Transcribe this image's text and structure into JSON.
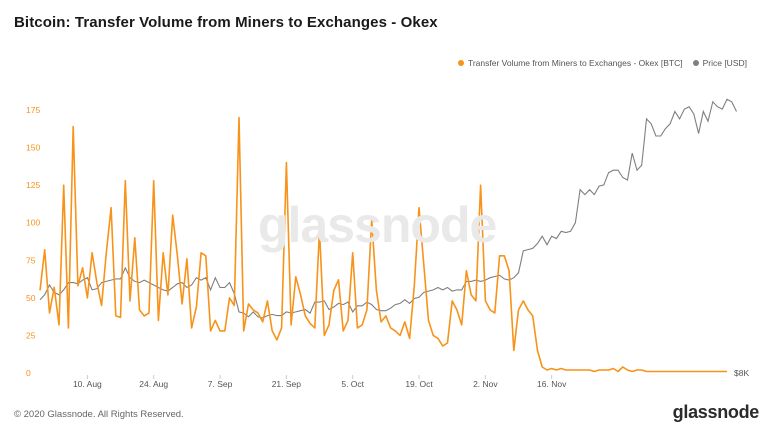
{
  "title": "Bitcoin: Transfer Volume from Miners to Exchanges - Okex",
  "watermark": "glassnode",
  "footer": {
    "copyright": "© 2020 Glassnode. All Rights Reserved.",
    "logo": "glassnode"
  },
  "colors": {
    "volume": "#f7931a",
    "price": "#7f7f7f",
    "axis_left": "#f7931a",
    "axis_text": "#555555"
  },
  "chart_data": {
    "type": "line",
    "title": "Bitcoin: Transfer Volume from Miners to Exchanges - Okex",
    "legend_position": "top-right",
    "grid": false,
    "x_ticks": [
      "10. Aug",
      "24. Aug",
      "7. Sep",
      "21. Sep",
      "5. Oct",
      "19. Oct",
      "2. Nov",
      "16. Nov"
    ],
    "y_left": {
      "ticks": [
        0,
        25,
        50,
        75,
        100,
        125,
        150,
        175
      ],
      "ylim": [
        0,
        187
      ]
    },
    "y_right": {
      "ticks": [
        "$8K"
      ]
    },
    "series": [
      {
        "name": "Transfer Volume from Miners to Exchanges - Okex [BTC]",
        "axis": "left",
        "x_start": "2020-07-31",
        "step_days": 1,
        "values": [
          55,
          82,
          40,
          57,
          32,
          125,
          30,
          164,
          58,
          70,
          50,
          80,
          60,
          45,
          80,
          110,
          38,
          37,
          128,
          48,
          90,
          42,
          38,
          40,
          128,
          35,
          80,
          52,
          105,
          78,
          46,
          76,
          30,
          44,
          80,
          78,
          28,
          35,
          28,
          28,
          50,
          45,
          170,
          28,
          46,
          42,
          40,
          34,
          48,
          28,
          22,
          30,
          140,
          32,
          64,
          52,
          38,
          33,
          30,
          95,
          25,
          32,
          55,
          62,
          28,
          35,
          80,
          30,
          32,
          42,
          102,
          55,
          34,
          38,
          30,
          28,
          25,
          34,
          23,
          58,
          110,
          72,
          35,
          25,
          23,
          18,
          20,
          48,
          42,
          32,
          68,
          52,
          48,
          125,
          48,
          42,
          40,
          78,
          78,
          68,
          15,
          42,
          48,
          42,
          38,
          15,
          4,
          2,
          3,
          2,
          3,
          2,
          2,
          2,
          2,
          2,
          2,
          1,
          2,
          2,
          2,
          3,
          1,
          4,
          2,
          1,
          2,
          2,
          1,
          1,
          1,
          1,
          1,
          1,
          1,
          1,
          1,
          1,
          1,
          1,
          1,
          1,
          1,
          1,
          1,
          1
        ]
      },
      {
        "name": "Price [USD]",
        "axis": "right",
        "x_start": "2020-07-31",
        "step_days": 1,
        "values": [
          11000,
          11200,
          11600,
          11300,
          11200,
          11400,
          11700,
          11700,
          11650,
          11800,
          11900,
          11400,
          11450,
          11700,
          11750,
          11800,
          11850,
          11850,
          12300,
          11900,
          11750,
          11700,
          11800,
          11700,
          11600,
          11500,
          11400,
          11350,
          11500,
          11650,
          11700,
          11500,
          11600,
          11900,
          11800,
          11900,
          11400,
          11900,
          11500,
          11500,
          11700,
          11250,
          10500,
          10450,
          10300,
          10500,
          10300,
          10250,
          10350,
          10400,
          10350,
          10350,
          10500,
          10450,
          10500,
          10550,
          10600,
          10450,
          10900,
          10900,
          10950,
          10600,
          10700,
          10850,
          10800,
          10900,
          10500,
          10750,
          10750,
          10900,
          10800,
          10600,
          10550,
          10550,
          10650,
          10800,
          10850,
          11000,
          10850,
          11050,
          11100,
          11300,
          11350,
          11400,
          11500,
          11400,
          11500,
          11350,
          11400,
          11400,
          11750,
          11750,
          11800,
          11750,
          11800,
          11900,
          11950,
          12000,
          11850,
          11800,
          11900,
          12100,
          13000,
          13050,
          13100,
          13300,
          13600,
          13250,
          13600,
          13500,
          13800,
          13750,
          13800,
          14150,
          15500,
          15300,
          15500,
          15300,
          15650,
          15700,
          16200,
          16300,
          16300,
          16000,
          15900,
          17000,
          16300,
          16500,
          18400,
          18200,
          17700,
          17700,
          18000,
          18200,
          18700,
          18400,
          18800,
          18900,
          18600,
          17800,
          18700,
          18300,
          19100,
          18900,
          18800,
          19200,
          19100,
          18700
        ]
      }
    ]
  }
}
